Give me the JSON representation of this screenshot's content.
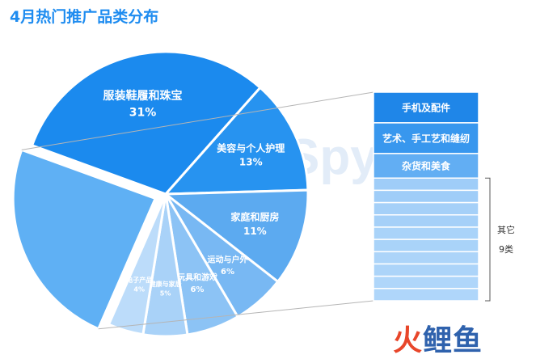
{
  "title": "4月热门推广品类分布",
  "chart_data": {
    "type": "pie",
    "slices": [
      {
        "label": "服装鞋履和珠宝",
        "value": 31,
        "value_text": "31%",
        "color": "#1b8aee"
      },
      {
        "label": "美容与个人护理",
        "value": 13,
        "value_text": "13%",
        "color": "#2793f0"
      },
      {
        "label": "家庭和厨房",
        "value": 11,
        "value_text": "11%",
        "color": "#5caaf0"
      },
      {
        "label": "运动与户外",
        "value": 6,
        "value_text": "6%",
        "color": "#78b8f3"
      },
      {
        "label": "玩具和游戏",
        "value": 6,
        "value_text": "6%",
        "color": "#8cc3f5"
      },
      {
        "label": "健康与家居",
        "value": 5,
        "value_text": "5%",
        "color": "#a9d2f8"
      },
      {
        "label": "电子产品",
        "value": 4,
        "value_text": "4%",
        "color": "#bcdcfa"
      },
      {
        "label": "其它",
        "value": 24,
        "value_text": "",
        "color": "#5fb0f4"
      }
    ],
    "breakdown": {
      "of": "其它",
      "items": [
        {
          "label": "手机及配件",
          "color": "#1f86e8"
        },
        {
          "label": "艺术、手工艺和缝纫",
          "color": "#3897ee"
        },
        {
          "label": "杂货和美食",
          "color": "#62aef3"
        },
        {
          "label": "",
          "color": "#9fcdf8"
        },
        {
          "label": "",
          "color": "#9fcdf8"
        },
        {
          "label": "",
          "color": "#a5d0f8"
        },
        {
          "label": "",
          "color": "#a5d0f8"
        },
        {
          "label": "",
          "color": "#a9d3f9"
        },
        {
          "label": "",
          "color": "#a9d3f9"
        },
        {
          "label": "",
          "color": "#acd4f9"
        },
        {
          "label": "",
          "color": "#acd4f9"
        },
        {
          "label": "",
          "color": "#afd6fa"
        },
        {
          "label": "",
          "color": "#afd6fa"
        }
      ],
      "bracket_label_1": "其它",
      "bracket_label_2": "9类"
    }
  },
  "watermark": "GoodSpy",
  "logo": {
    "part1": "火",
    "part2": "鲤鱼"
  }
}
